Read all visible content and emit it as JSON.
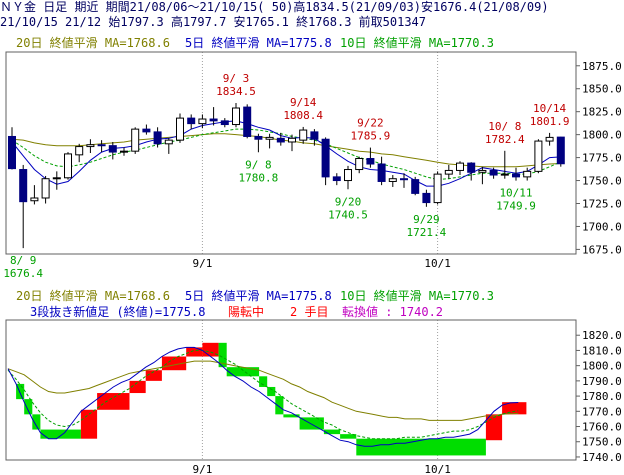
{
  "header": {
    "line1": "ＮＹ金 日足 期近 期間21/08/06～21/10/15( 50)高1834.5(21/09/03)安1676.4(21/08/09)",
    "line2": "21/10/15 21/12 始1797.3 高1797.7 安1765.1 終1768.3 前取501347"
  },
  "colors": {
    "frame": "#606060",
    "bull": "#ffffff",
    "bear": "#000080",
    "ma20": "#808000",
    "ma5": "#0000c0",
    "ma10": "#00a000",
    "kagi_up": "#ff0000",
    "kagi_down": "#00dd00",
    "ann_high": "#c00000",
    "ann_low": "#00a000",
    "grid": "#a0a0a0"
  },
  "chart_data": [
    {
      "type": "candlestick",
      "legend": [
        {
          "text": "20日 終値平滑 MA=1768.6",
          "color": "#808000"
        },
        {
          "text": "5日 終値平滑 MA=1775.8",
          "color": "#0000c0"
        },
        {
          "text": "10日 終値平滑 MA=1770.3",
          "color": "#00a000"
        }
      ],
      "x_labels": [
        {
          "text": "9/1",
          "index": 17
        },
        {
          "text": "10/1",
          "index": 38
        }
      ],
      "ylim": [
        1670,
        1890
      ],
      "y_ticks": [
        "1675.0",
        "1700.0",
        "1725.0",
        "1750.0",
        "1775.0",
        "1800.0",
        "1825.0",
        "1850.0",
        "1875.0"
      ],
      "y_tick_values": [
        1675,
        1700,
        1725,
        1750,
        1775,
        1800,
        1825,
        1850,
        1875
      ],
      "candles": [
        {
          "date": "8/6",
          "o": 1798,
          "h": 1808,
          "l": 1762,
          "c": 1763
        },
        {
          "date": "8/9",
          "o": 1762,
          "h": 1767,
          "l": 1676.4,
          "c": 1727
        },
        {
          "date": "8/10",
          "o": 1728,
          "h": 1745,
          "l": 1724,
          "c": 1731
        },
        {
          "date": "8/11",
          "o": 1731,
          "h": 1755,
          "l": 1725,
          "c": 1752
        },
        {
          "date": "8/12",
          "o": 1752,
          "h": 1760,
          "l": 1740,
          "c": 1753
        },
        {
          "date": "8/13",
          "o": 1753,
          "h": 1781,
          "l": 1751,
          "c": 1779
        },
        {
          "date": "8/16",
          "o": 1778,
          "h": 1790,
          "l": 1770,
          "c": 1787
        },
        {
          "date": "8/17",
          "o": 1787,
          "h": 1795,
          "l": 1780,
          "c": 1789
        },
        {
          "date": "8/18",
          "o": 1789,
          "h": 1794,
          "l": 1781,
          "c": 1788
        },
        {
          "date": "8/19",
          "o": 1788,
          "h": 1792,
          "l": 1773,
          "c": 1781
        },
        {
          "date": "8/20",
          "o": 1781,
          "h": 1786,
          "l": 1777,
          "c": 1782
        },
        {
          "date": "8/23",
          "o": 1782,
          "h": 1808,
          "l": 1779,
          "c": 1806
        },
        {
          "date": "8/24",
          "o": 1806,
          "h": 1811,
          "l": 1800,
          "c": 1803
        },
        {
          "date": "8/25",
          "o": 1803,
          "h": 1808,
          "l": 1786,
          "c": 1790
        },
        {
          "date": "8/26",
          "o": 1790,
          "h": 1796,
          "l": 1779,
          "c": 1794
        },
        {
          "date": "8/27",
          "o": 1794,
          "h": 1823,
          "l": 1791,
          "c": 1818
        },
        {
          "date": "8/30",
          "o": 1818,
          "h": 1822,
          "l": 1806,
          "c": 1812
        },
        {
          "date": "8/31",
          "o": 1812,
          "h": 1822,
          "l": 1807,
          "c": 1817
        },
        {
          "date": "9/1",
          "o": 1817,
          "h": 1830,
          "l": 1810,
          "c": 1815
        },
        {
          "date": "9/2",
          "o": 1815,
          "h": 1818,
          "l": 1808,
          "c": 1811
        },
        {
          "date": "9/3",
          "o": 1811,
          "h": 1834.5,
          "l": 1808,
          "c": 1829
        },
        {
          "date": "9/7",
          "o": 1830,
          "h": 1833,
          "l": 1796,
          "c": 1798
        },
        {
          "date": "9/8",
          "o": 1798,
          "h": 1801,
          "l": 1780.8,
          "c": 1795
        },
        {
          "date": "9/9",
          "o": 1795,
          "h": 1801,
          "l": 1785,
          "c": 1797
        },
        {
          "date": "9/10",
          "o": 1796,
          "h": 1802,
          "l": 1788,
          "c": 1792
        },
        {
          "date": "9/13",
          "o": 1792,
          "h": 1800,
          "l": 1782,
          "c": 1796
        },
        {
          "date": "9/14",
          "o": 1794,
          "h": 1808.4,
          "l": 1790,
          "c": 1805
        },
        {
          "date": "9/15",
          "o": 1803,
          "h": 1806,
          "l": 1788,
          "c": 1795
        },
        {
          "date": "9/16",
          "o": 1795,
          "h": 1797,
          "l": 1745,
          "c": 1754
        },
        {
          "date": "9/17",
          "o": 1754,
          "h": 1758,
          "l": 1745,
          "c": 1750
        },
        {
          "date": "9/20",
          "o": 1750,
          "h": 1766,
          "l": 1740.5,
          "c": 1762
        },
        {
          "date": "9/21",
          "o": 1762,
          "h": 1776,
          "l": 1758,
          "c": 1774
        },
        {
          "date": "9/22",
          "o": 1774,
          "h": 1785.9,
          "l": 1764,
          "c": 1768
        },
        {
          "date": "9/23",
          "o": 1768,
          "h": 1776,
          "l": 1745,
          "c": 1749
        },
        {
          "date": "9/24",
          "o": 1749,
          "h": 1756,
          "l": 1743,
          "c": 1752
        },
        {
          "date": "9/27",
          "o": 1752,
          "h": 1758,
          "l": 1742,
          "c": 1751
        },
        {
          "date": "9/28",
          "o": 1751,
          "h": 1754,
          "l": 1734,
          "c": 1736
        },
        {
          "date": "9/29",
          "o": 1736,
          "h": 1740,
          "l": 1721.4,
          "c": 1726
        },
        {
          "date": "9/30",
          "o": 1726,
          "h": 1760,
          "l": 1724,
          "c": 1757
        },
        {
          "date": "10/1",
          "o": 1757,
          "h": 1767,
          "l": 1752,
          "c": 1761
        },
        {
          "date": "10/4",
          "o": 1761,
          "h": 1771,
          "l": 1756,
          "c": 1769
        },
        {
          "date": "10/5",
          "o": 1769,
          "h": 1770,
          "l": 1750,
          "c": 1759
        },
        {
          "date": "10/6",
          "o": 1759,
          "h": 1765,
          "l": 1746,
          "c": 1761
        },
        {
          "date": "10/7",
          "o": 1761,
          "h": 1764,
          "l": 1752,
          "c": 1756
        },
        {
          "date": "10/8",
          "o": 1756,
          "h": 1782.4,
          "l": 1752,
          "c": 1757
        },
        {
          "date": "10/11",
          "o": 1757,
          "h": 1764,
          "l": 1749.9,
          "c": 1754
        },
        {
          "date": "10/12",
          "o": 1754,
          "h": 1764,
          "l": 1750,
          "c": 1760
        },
        {
          "date": "10/13",
          "o": 1760,
          "h": 1795,
          "l": 1758,
          "c": 1793
        },
        {
          "date": "10/14",
          "o": 1793,
          "h": 1801.9,
          "l": 1788,
          "c": 1797
        },
        {
          "date": "10/15",
          "o": 1797.3,
          "h": 1797.7,
          "l": 1765.1,
          "c": 1768.3
        }
      ],
      "ma20": [
        1795,
        1794,
        1791,
        1789,
        1788,
        1788,
        1788,
        1789,
        1790,
        1791,
        1792,
        1794,
        1795,
        1796,
        1797,
        1798,
        1799,
        1800,
        1801,
        1801,
        1800,
        1799,
        1798,
        1796,
        1794,
        1793,
        1791,
        1790,
        1788,
        1786,
        1784,
        1782,
        1781,
        1779,
        1778,
        1776,
        1774,
        1772,
        1770,
        1768,
        1767,
        1766,
        1765,
        1765,
        1765,
        1765,
        1766,
        1767,
        1768,
        1768.6
      ],
      "ma5": [
        1792,
        1777,
        1762,
        1752,
        1746,
        1749,
        1760,
        1772,
        1781,
        1785,
        1786,
        1788,
        1792,
        1795,
        1796,
        1799,
        1806,
        1810,
        1812,
        1814,
        1815,
        1812,
        1808,
        1805,
        1799,
        1796,
        1797,
        1796,
        1788,
        1779,
        1771,
        1765,
        1762,
        1761,
        1759,
        1757,
        1750,
        1744,
        1744,
        1747,
        1752,
        1758,
        1764,
        1762,
        1760,
        1758,
        1760,
        1767,
        1775,
        1775.8
      ],
      "ma10": [
        1794,
        1786,
        1777,
        1770,
        1766,
        1765,
        1767,
        1770,
        1774,
        1778,
        1781,
        1783,
        1786,
        1789,
        1792,
        1794,
        1797,
        1800,
        1802,
        1804,
        1806,
        1806,
        1805,
        1803,
        1801,
        1798,
        1796,
        1794,
        1790,
        1785,
        1780,
        1775,
        1772,
        1768,
        1765,
        1762,
        1758,
        1754,
        1751,
        1752,
        1754,
        1756,
        1758,
        1758,
        1758,
        1757,
        1757,
        1760,
        1765,
        1770.3
      ],
      "annotations": [
        {
          "date": "8/9",
          "price": 1676.4,
          "text": "8/ 9\n1676.4",
          "kind": "low"
        },
        {
          "date": "9/3",
          "price": 1834.5,
          "text": "9/ 3\n1834.5",
          "kind": "high"
        },
        {
          "date": "9/8",
          "price": 1780.8,
          "text": "9/ 8\n1780.8",
          "kind": "low"
        },
        {
          "date": "9/14",
          "price": 1808.4,
          "text": "9/14\n1808.4",
          "kind": "high"
        },
        {
          "date": "9/20",
          "price": 1740.5,
          "text": "9/20\n1740.5",
          "kind": "low"
        },
        {
          "date": "9/22",
          "price": 1785.9,
          "text": "9/22\n1785.9",
          "kind": "high"
        },
        {
          "date": "9/29",
          "price": 1721.4,
          "text": "9/29\n1721.4",
          "kind": "low"
        },
        {
          "date": "10/8",
          "price": 1782.4,
          "text": "10/ 8\n1782.4",
          "kind": "high"
        },
        {
          "date": "10/11",
          "price": 1749.9,
          "text": "10/11\n1749.9",
          "kind": "low"
        },
        {
          "date": "10/14",
          "price": 1801.9,
          "text": "10/14\n1801.9",
          "kind": "high"
        }
      ]
    },
    {
      "type": "kagi_three_line_break",
      "legend": [
        {
          "text": "20日 終値平滑 MA=1768.6",
          "color": "#808000"
        },
        {
          "text": "5日 終値平滑 MA=1775.8",
          "color": "#0000c0"
        },
        {
          "text": "10日 終値平滑 MA=1770.3",
          "color": "#00a000"
        }
      ],
      "status": [
        {
          "text": "3段抜き新値足 (終値)=1775.8",
          "color": "#0000c0"
        },
        {
          "text": "陽転中",
          "color": "#ff0000"
        },
        {
          "text": "2 手目",
          "color": "#ff0000"
        },
        {
          "text": "転換値 : 1740.2",
          "color": "#c000c0"
        }
      ],
      "x_labels": [
        {
          "text": "9/1",
          "index": 17
        },
        {
          "text": "10/1",
          "index": 38
        }
      ],
      "ylim": [
        1738,
        1830
      ],
      "y_ticks": [
        "1740.0",
        "1750.0",
        "1760.0",
        "1770.0",
        "1780.0",
        "1790.0",
        "1800.0",
        "1810.0",
        "1820.0"
      ],
      "y_tick_values": [
        1740,
        1750,
        1760,
        1770,
        1780,
        1790,
        1800,
        1810,
        1820
      ],
      "bricks": [
        {
          "s": 1,
          "e": 1,
          "lo": 1778,
          "hi": 1788,
          "dir": "down"
        },
        {
          "s": 2,
          "e": 2,
          "lo": 1768,
          "hi": 1778,
          "dir": "down"
        },
        {
          "s": 3,
          "e": 3,
          "lo": 1758,
          "hi": 1768,
          "dir": "down"
        },
        {
          "s": 4,
          "e": 8,
          "lo": 1752,
          "hi": 1758,
          "dir": "down"
        },
        {
          "s": 9,
          "e": 10,
          "lo": 1752,
          "hi": 1771,
          "dir": "up"
        },
        {
          "s": 11,
          "e": 14,
          "lo": 1771,
          "hi": 1782,
          "dir": "up"
        },
        {
          "s": 15,
          "e": 16,
          "lo": 1782,
          "hi": 1790,
          "dir": "up"
        },
        {
          "s": 17,
          "e": 18,
          "lo": 1790,
          "hi": 1797,
          "dir": "up"
        },
        {
          "s": 19,
          "e": 21,
          "lo": 1797,
          "hi": 1806,
          "dir": "up"
        },
        {
          "s": 22,
          "e": 23,
          "lo": 1806,
          "hi": 1812,
          "dir": "up"
        },
        {
          "s": 24,
          "e": 25,
          "lo": 1806,
          "hi": 1815,
          "dir": "up"
        },
        {
          "s": 26,
          "e": 26,
          "lo": 1799,
          "hi": 1815,
          "dir": "down"
        },
        {
          "s": 27,
          "e": 30,
          "lo": 1793,
          "hi": 1799,
          "dir": "down"
        },
        {
          "s": 31,
          "e": 31,
          "lo": 1786,
          "hi": 1793,
          "dir": "down"
        },
        {
          "s": 32,
          "e": 32,
          "lo": 1780,
          "hi": 1786,
          "dir": "down"
        },
        {
          "s": 33,
          "e": 33,
          "lo": 1768,
          "hi": 1780,
          "dir": "down"
        },
        {
          "s": 34,
          "e": 35,
          "lo": 1766,
          "hi": 1768,
          "dir": "down"
        },
        {
          "s": 36,
          "e": 38,
          "lo": 1758,
          "hi": 1766,
          "dir": "down"
        },
        {
          "s": 39,
          "e": 40,
          "lo": 1755,
          "hi": 1758,
          "dir": "down"
        },
        {
          "s": 41,
          "e": 42,
          "lo": 1752,
          "hi": 1755,
          "dir": "down"
        },
        {
          "s": 43,
          "e": 58,
          "lo": 1741,
          "hi": 1752,
          "dir": "down"
        },
        {
          "s": 59,
          "e": 60,
          "lo": 1751,
          "hi": 1768,
          "dir": "up"
        },
        {
          "s": 61,
          "e": 63,
          "lo": 1768,
          "hi": 1776,
          "dir": "up"
        }
      ],
      "ma20": [
        1798,
        1796,
        1794,
        1790,
        1786,
        1783,
        1782,
        1782,
        1783,
        1784,
        1785,
        1787,
        1789,
        1791,
        1793,
        1795,
        1796,
        1797,
        1798,
        1799,
        1800,
        1801,
        1802,
        1803,
        1803,
        1803,
        1802,
        1801,
        1800,
        1799,
        1798,
        1797,
        1795,
        1793,
        1791,
        1788,
        1786,
        1783,
        1781,
        1779,
        1776,
        1774,
        1772,
        1770,
        1769,
        1768,
        1767,
        1766,
        1766,
        1765,
        1765,
        1765,
        1764,
        1764,
        1764,
        1764,
        1764,
        1765,
        1766,
        1767,
        1767,
        1768,
        1768.4,
        1768.6
      ],
      "ma5": [
        1798,
        1788,
        1776,
        1765,
        1756,
        1752,
        1752,
        1756,
        1763,
        1770,
        1774,
        1778,
        1782,
        1786,
        1789,
        1791,
        1795,
        1799,
        1802,
        1806,
        1809,
        1811,
        1812,
        1812,
        1810,
        1806,
        1802,
        1797,
        1793,
        1790,
        1786,
        1783,
        1779,
        1775,
        1771,
        1769,
        1766,
        1763,
        1760,
        1757,
        1754,
        1751,
        1750,
        1748,
        1747,
        1747,
        1748,
        1748,
        1749,
        1749,
        1750,
        1751,
        1752,
        1752,
        1753,
        1753,
        1754,
        1755,
        1758,
        1764,
        1770,
        1774,
        1775.5,
        1775.8
      ],
      "ma10": [
        1797,
        1791,
        1784,
        1776,
        1769,
        1764,
        1761,
        1760,
        1761,
        1764,
        1768,
        1772,
        1776,
        1779,
        1782,
        1785,
        1789,
        1793,
        1796,
        1799,
        1803,
        1806,
        1808,
        1810,
        1810,
        1809,
        1807,
        1804,
        1801,
        1797,
        1793,
        1789,
        1786,
        1783,
        1779,
        1775,
        1772,
        1769,
        1766,
        1763,
        1761,
        1758,
        1756,
        1754,
        1753,
        1752,
        1752,
        1752,
        1752,
        1753,
        1753,
        1753,
        1754,
        1755,
        1756,
        1757,
        1757,
        1758,
        1760,
        1763,
        1766,
        1768,
        1769.5,
        1770.3
      ]
    }
  ]
}
